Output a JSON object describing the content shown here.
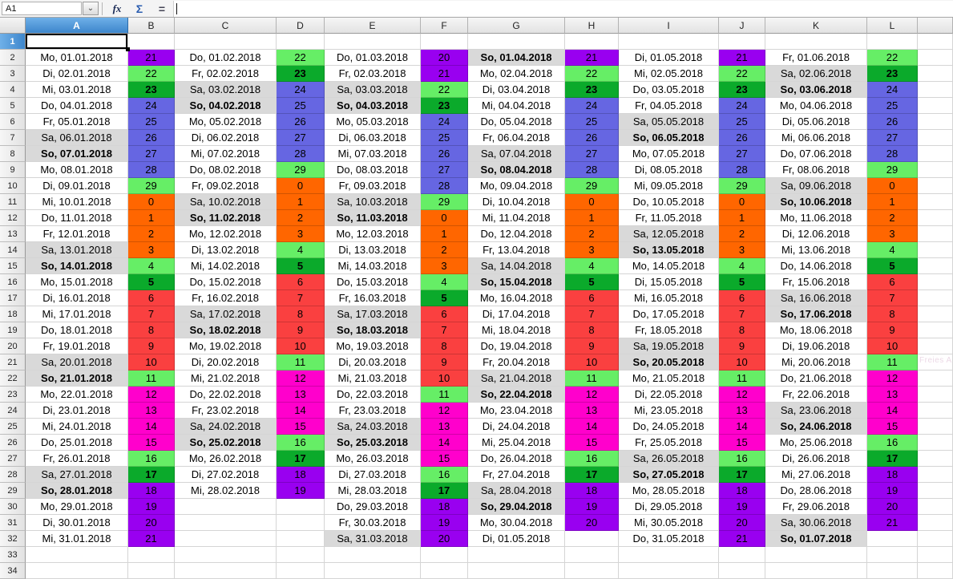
{
  "formula_bar": {
    "name_box": "A1",
    "function_icon": "fx",
    "sum_icon": "Σ",
    "equals_icon": "="
  },
  "grid": {
    "selected_cell": "A1",
    "visible_rows": 34,
    "column_letters": [
      "A",
      "B",
      "C",
      "D",
      "E",
      "F",
      "G",
      "H",
      "I",
      "J",
      "K",
      "L",
      ""
    ]
  },
  "colors": {
    "orange": "#FF6600",
    "red": "#FA4040",
    "magenta": "#FF00CC",
    "purple": "#9900F0",
    "blue": "#6666E2",
    "light_green": "#66EE66",
    "dark_green": "#0BAA2B",
    "weekend_bg": "#D9D9D9"
  },
  "value_colors": {
    "0": "orange",
    "1": "orange",
    "2": "orange",
    "3": "orange",
    "4": "light_green",
    "5": "dark_green",
    "6": "red",
    "7": "red",
    "8": "red",
    "9": "red",
    "10": "red",
    "11": "light_green",
    "12": "magenta",
    "13": "magenta",
    "14": "magenta",
    "15": "magenta",
    "16": "light_green",
    "17": "dark_green",
    "18": "purple",
    "19": "purple",
    "20": "purple",
    "21": "purple",
    "22": "light_green",
    "23": "dark_green",
    "24": "blue",
    "25": "blue",
    "26": "blue",
    "27": "blue",
    "28": "blue",
    "29": "light_green"
  },
  "bold_values": [
    5,
    17,
    23
  ],
  "weekend_prefixes": [
    "Sa",
    "So"
  ],
  "bold_day_prefix": "So",
  "months": [
    [
      [
        "Mo, 01.01.2018",
        21
      ],
      [
        "Di, 02.01.2018",
        22
      ],
      [
        "Mi, 03.01.2018",
        23
      ],
      [
        "Do, 04.01.2018",
        24
      ],
      [
        "Fr, 05.01.2018",
        25
      ],
      [
        "Sa, 06.01.2018",
        26
      ],
      [
        "So, 07.01.2018",
        27
      ],
      [
        "Mo, 08.01.2018",
        28
      ],
      [
        "Di, 09.01.2018",
        29
      ],
      [
        "Mi, 10.01.2018",
        0
      ],
      [
        "Do, 11.01.2018",
        1
      ],
      [
        "Fr, 12.01.2018",
        2
      ],
      [
        "Sa, 13.01.2018",
        3
      ],
      [
        "So, 14.01.2018",
        4
      ],
      [
        "Mo, 15.01.2018",
        5
      ],
      [
        "Di, 16.01.2018",
        6
      ],
      [
        "Mi, 17.01.2018",
        7
      ],
      [
        "Do, 18.01.2018",
        8
      ],
      [
        "Fr, 19.01.2018",
        9
      ],
      [
        "Sa, 20.01.2018",
        10
      ],
      [
        "So, 21.01.2018",
        11
      ],
      [
        "Mo, 22.01.2018",
        12
      ],
      [
        "Di, 23.01.2018",
        13
      ],
      [
        "Mi, 24.01.2018",
        14
      ],
      [
        "Do, 25.01.2018",
        15
      ],
      [
        "Fr, 26.01.2018",
        16
      ],
      [
        "Sa, 27.01.2018",
        17
      ],
      [
        "So, 28.01.2018",
        18
      ],
      [
        "Mo, 29.01.2018",
        19
      ],
      [
        "Di, 30.01.2018",
        20
      ],
      [
        "Mi, 31.01.2018",
        21
      ]
    ],
    [
      [
        "Do, 01.02.2018",
        22
      ],
      [
        "Fr, 02.02.2018",
        23
      ],
      [
        "Sa, 03.02.2018",
        24
      ],
      [
        "So, 04.02.2018",
        25
      ],
      [
        "Mo, 05.02.2018",
        26
      ],
      [
        "Di, 06.02.2018",
        27
      ],
      [
        "Mi, 07.02.2018",
        28
      ],
      [
        "Do, 08.02.2018",
        29
      ],
      [
        "Fr, 09.02.2018",
        0
      ],
      [
        "Sa, 10.02.2018",
        1
      ],
      [
        "So, 11.02.2018",
        2
      ],
      [
        "Mo, 12.02.2018",
        3
      ],
      [
        "Di, 13.02.2018",
        4
      ],
      [
        "Mi, 14.02.2018",
        5
      ],
      [
        "Do, 15.02.2018",
        6
      ],
      [
        "Fr, 16.02.2018",
        7
      ],
      [
        "Sa, 17.02.2018",
        8
      ],
      [
        "So, 18.02.2018",
        9
      ],
      [
        "Mo, 19.02.2018",
        10
      ],
      [
        "Di, 20.02.2018",
        11
      ],
      [
        "Mi, 21.02.2018",
        12
      ],
      [
        "Do, 22.02.2018",
        13
      ],
      [
        "Fr, 23.02.2018",
        14
      ],
      [
        "Sa, 24.02.2018",
        15
      ],
      [
        "So, 25.02.2018",
        16
      ],
      [
        "Mo, 26.02.2018",
        17
      ],
      [
        "Di, 27.02.2018",
        18
      ],
      [
        "Mi, 28.02.2018",
        19
      ]
    ],
    [
      [
        "Do, 01.03.2018",
        20
      ],
      [
        "Fr, 02.03.2018",
        21
      ],
      [
        "Sa, 03.03.2018",
        22
      ],
      [
        "So, 04.03.2018",
        23
      ],
      [
        "Mo, 05.03.2018",
        24
      ],
      [
        "Di, 06.03.2018",
        25
      ],
      [
        "Mi, 07.03.2018",
        26
      ],
      [
        "Do, 08.03.2018",
        27
      ],
      [
        "Fr, 09.03.2018",
        28
      ],
      [
        "Sa, 10.03.2018",
        29
      ],
      [
        "So, 11.03.2018",
        0
      ],
      [
        "Mo, 12.03.2018",
        1
      ],
      [
        "Di, 13.03.2018",
        2
      ],
      [
        "Mi, 14.03.2018",
        3
      ],
      [
        "Do, 15.03.2018",
        4
      ],
      [
        "Fr, 16.03.2018",
        5
      ],
      [
        "Sa, 17.03.2018",
        6
      ],
      [
        "So, 18.03.2018",
        7
      ],
      [
        "Mo, 19.03.2018",
        8
      ],
      [
        "Di, 20.03.2018",
        9
      ],
      [
        "Mi, 21.03.2018",
        10
      ],
      [
        "Do, 22.03.2018",
        11
      ],
      [
        "Fr, 23.03.2018",
        12
      ],
      [
        "Sa, 24.03.2018",
        13
      ],
      [
        "So, 25.03.2018",
        14
      ],
      [
        "Mo, 26.03.2018",
        15
      ],
      [
        "Di, 27.03.2018",
        16
      ],
      [
        "Mi, 28.03.2018",
        17
      ],
      [
        "Do, 29.03.2018",
        18
      ],
      [
        "Fr, 30.03.2018",
        19
      ],
      [
        "Sa, 31.03.2018",
        20
      ]
    ],
    [
      [
        "So, 01.04.2018",
        21
      ],
      [
        "Mo, 02.04.2018",
        22
      ],
      [
        "Di, 03.04.2018",
        23
      ],
      [
        "Mi, 04.04.2018",
        24
      ],
      [
        "Do, 05.04.2018",
        25
      ],
      [
        "Fr, 06.04.2018",
        26
      ],
      [
        "Sa, 07.04.2018",
        27
      ],
      [
        "So, 08.04.2018",
        28
      ],
      [
        "Mo, 09.04.2018",
        29
      ],
      [
        "Di, 10.04.2018",
        0
      ],
      [
        "Mi, 11.04.2018",
        1
      ],
      [
        "Do, 12.04.2018",
        2
      ],
      [
        "Fr, 13.04.2018",
        3
      ],
      [
        "Sa, 14.04.2018",
        4
      ],
      [
        "So, 15.04.2018",
        5
      ],
      [
        "Mo, 16.04.2018",
        6
      ],
      [
        "Di, 17.04.2018",
        7
      ],
      [
        "Mi, 18.04.2018",
        8
      ],
      [
        "Do, 19.04.2018",
        9
      ],
      [
        "Fr, 20.04.2018",
        10
      ],
      [
        "Sa, 21.04.2018",
        11
      ],
      [
        "So, 22.04.2018",
        12
      ],
      [
        "Mo, 23.04.2018",
        13
      ],
      [
        "Di, 24.04.2018",
        14
      ],
      [
        "Mi, 25.04.2018",
        15
      ],
      [
        "Do, 26.04.2018",
        16
      ],
      [
        "Fr, 27.04.2018",
        17
      ],
      [
        "Sa, 28.04.2018",
        18
      ],
      [
        "So, 29.04.2018",
        19
      ],
      [
        "Mo, 30.04.2018",
        20
      ],
      [
        "Di, 01.05.2018",
        null
      ]
    ],
    [
      [
        "Di, 01.05.2018",
        21
      ],
      [
        "Mi, 02.05.2018",
        22
      ],
      [
        "Do, 03.05.2018",
        23
      ],
      [
        "Fr, 04.05.2018",
        24
      ],
      [
        "Sa, 05.05.2018",
        25
      ],
      [
        "So, 06.05.2018",
        26
      ],
      [
        "Mo, 07.05.2018",
        27
      ],
      [
        "Di, 08.05.2018",
        28
      ],
      [
        "Mi, 09.05.2018",
        29
      ],
      [
        "Do, 10.05.2018",
        0
      ],
      [
        "Fr, 11.05.2018",
        1
      ],
      [
        "Sa, 12.05.2018",
        2
      ],
      [
        "So, 13.05.2018",
        3
      ],
      [
        "Mo, 14.05.2018",
        4
      ],
      [
        "Di, 15.05.2018",
        5
      ],
      [
        "Mi, 16.05.2018",
        6
      ],
      [
        "Do, 17.05.2018",
        7
      ],
      [
        "Fr, 18.05.2018",
        8
      ],
      [
        "Sa, 19.05.2018",
        9
      ],
      [
        "So, 20.05.2018",
        10
      ],
      [
        "Mo, 21.05.2018",
        11
      ],
      [
        "Di, 22.05.2018",
        12
      ],
      [
        "Mi, 23.05.2018",
        13
      ],
      [
        "Do, 24.05.2018",
        14
      ],
      [
        "Fr, 25.05.2018",
        15
      ],
      [
        "Sa, 26.05.2018",
        16
      ],
      [
        "So, 27.05.2018",
        17
      ],
      [
        "Mo, 28.05.2018",
        18
      ],
      [
        "Di, 29.05.2018",
        19
      ],
      [
        "Mi, 30.05.2018",
        20
      ],
      [
        "Do, 31.05.2018",
        21
      ]
    ],
    [
      [
        "Fr, 01.06.2018",
        22
      ],
      [
        "Sa, 02.06.2018",
        23
      ],
      [
        "So, 03.06.2018",
        24
      ],
      [
        "Mo, 04.06.2018",
        25
      ],
      [
        "Di, 05.06.2018",
        26
      ],
      [
        "Mi, 06.06.2018",
        27
      ],
      [
        "Do, 07.06.2018",
        28
      ],
      [
        "Fr, 08.06.2018",
        29
      ],
      [
        "Sa, 09.06.2018",
        0
      ],
      [
        "So, 10.06.2018",
        1
      ],
      [
        "Mo, 11.06.2018",
        2
      ],
      [
        "Di, 12.06.2018",
        3
      ],
      [
        "Mi, 13.06.2018",
        4
      ],
      [
        "Do, 14.06.2018",
        5
      ],
      [
        "Fr, 15.06.2018",
        6
      ],
      [
        "Sa, 16.06.2018",
        7
      ],
      [
        "So, 17.06.2018",
        8
      ],
      [
        "Mo, 18.06.2018",
        9
      ],
      [
        "Di, 19.06.2018",
        10
      ],
      [
        "Mi, 20.06.2018",
        11
      ],
      [
        "Do, 21.06.2018",
        12
      ],
      [
        "Fr, 22.06.2018",
        13
      ],
      [
        "Sa, 23.06.2018",
        14
      ],
      [
        "So, 24.06.2018",
        15
      ],
      [
        "Mo, 25.06.2018",
        16
      ],
      [
        "Di, 26.06.2018",
        17
      ],
      [
        "Mi, 27.06.2018",
        18
      ],
      [
        "Do, 28.06.2018",
        19
      ],
      [
        "Fr, 29.06.2018",
        20
      ],
      [
        "Sa, 30.06.2018",
        21
      ],
      [
        "So, 01.07.2018",
        null
      ]
    ]
  ],
  "watermark": "Freies A"
}
